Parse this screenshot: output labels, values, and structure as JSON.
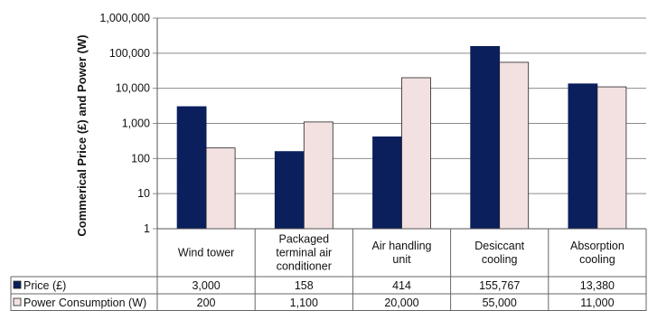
{
  "chart_data": {
    "type": "bar",
    "yscale": "log",
    "ylim": [
      1,
      1000000
    ],
    "ylabel": "Commerical Price (£) and Power (W)",
    "yticks": [
      "1",
      "10",
      "100",
      "1,000",
      "10,000",
      "100,000",
      "1,000,000"
    ],
    "ytick_values": [
      1,
      10,
      100,
      1000,
      10000,
      100000,
      1000000
    ],
    "categories": [
      [
        "Wind tower"
      ],
      [
        "Packaged",
        "terminal air",
        "conditioner"
      ],
      [
        "Air handling",
        "unit"
      ],
      [
        "Desiccant",
        "cooling"
      ],
      [
        "Absorption",
        "cooling"
      ]
    ],
    "grid": true,
    "legend": "data-table",
    "series": [
      {
        "name": "Price (£)",
        "color": "#0a1f5c",
        "values": [
          3000,
          158,
          414,
          155767,
          13380
        ],
        "labels": [
          "3,000",
          "158",
          "414",
          "155,767",
          "13,380"
        ]
      },
      {
        "name": "Power Consumption (W)",
        "color": "#f3e1e1",
        "values": [
          200,
          1100,
          20000,
          55000,
          11000
        ],
        "labels": [
          "200",
          "1,100",
          "20,000",
          "55,000",
          "11,000"
        ]
      }
    ]
  }
}
